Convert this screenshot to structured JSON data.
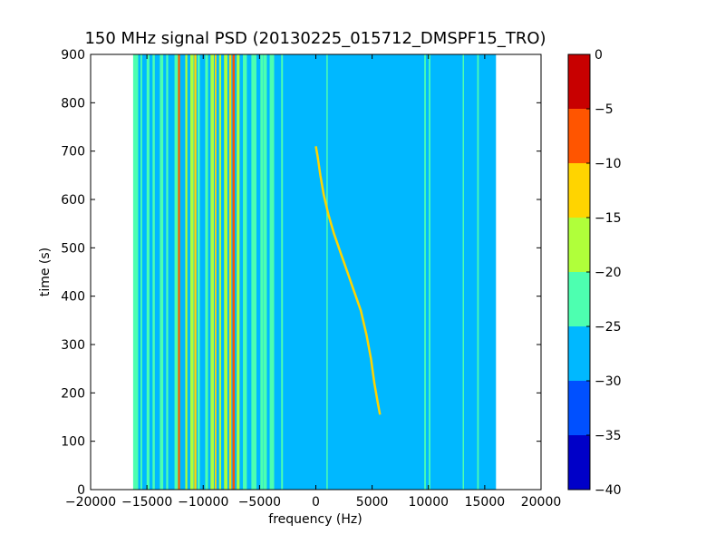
{
  "chart_data": {
    "type": "heatmap",
    "title": "150 MHz signal PSD (20130225_015712_DMSPF15_TRO)",
    "xlabel": "frequency (Hz)",
    "ylabel": "time (s)",
    "xlim": [
      -20000,
      20000
    ],
    "ylim": [
      0,
      900
    ],
    "xticks": [
      -20000,
      -15000,
      -10000,
      -5000,
      0,
      5000,
      10000,
      15000,
      20000
    ],
    "xtick_labels": [
      "−20000",
      "−15000",
      "−10000",
      "−5000",
      "0",
      "5000",
      "10000",
      "15000",
      "20000"
    ],
    "yticks": [
      0,
      100,
      200,
      300,
      400,
      500,
      600,
      700,
      800,
      900
    ],
    "ytick_labels": [
      "0",
      "100",
      "200",
      "300",
      "400",
      "500",
      "600",
      "700",
      "800",
      "900"
    ],
    "data_extent": {
      "freq_min": -16000,
      "freq_max": 16000,
      "time_min": 0,
      "time_max": 900
    },
    "background_level": -27.5,
    "colorbar": {
      "levels": [
        -40,
        -35,
        -30,
        -25,
        -20,
        -15,
        -10,
        -5,
        0
      ],
      "tick_labels": [
        "−40",
        "−35",
        "−30",
        "−25",
        "−20",
        "−15",
        "−10",
        "−5",
        "0"
      ],
      "colors": [
        "#0000c8",
        "#0050ff",
        "#00b8ff",
        "#4dffb0",
        "#b0ff3a",
        "#ffd400",
        "#ff5500",
        "#c80000"
      ]
    },
    "static_bands": [
      {
        "freq": -16000,
        "width": 450,
        "level": -22
      },
      {
        "freq": -15500,
        "width": 150,
        "level": -22
      },
      {
        "freq": -14900,
        "width": 250,
        "level": -22
      },
      {
        "freq": -14400,
        "width": 200,
        "level": -22
      },
      {
        "freq": -13700,
        "width": 300,
        "level": -22
      },
      {
        "freq": -13200,
        "width": 180,
        "level": -22
      },
      {
        "freq": -12300,
        "width": 500,
        "level": -22
      },
      {
        "freq": -12150,
        "width": 180,
        "level": -7
      },
      {
        "freq": -11500,
        "width": 180,
        "level": -17
      },
      {
        "freq": -11000,
        "width": 300,
        "level": -17
      },
      {
        "freq": -10700,
        "width": 200,
        "level": -12
      },
      {
        "freq": -10400,
        "width": 200,
        "level": -22
      },
      {
        "freq": -9700,
        "width": 250,
        "level": -22
      },
      {
        "freq": -9200,
        "width": 300,
        "level": -17
      },
      {
        "freq": -8900,
        "width": 150,
        "level": -12
      },
      {
        "freq": -8500,
        "width": 180,
        "level": -17
      },
      {
        "freq": -8000,
        "width": 300,
        "level": -17
      },
      {
        "freq": -7600,
        "width": 200,
        "level": -12
      },
      {
        "freq": -7300,
        "width": 200,
        "level": -7
      },
      {
        "freq": -6900,
        "width": 250,
        "level": -17
      },
      {
        "freq": -6300,
        "width": 350,
        "level": -22
      },
      {
        "freq": -5500,
        "width": 450,
        "level": -22
      },
      {
        "freq": -4800,
        "width": 250,
        "level": -22
      },
      {
        "freq": -4500,
        "width": 300,
        "level": -22
      },
      {
        "freq": -3900,
        "width": 400,
        "level": -22
      },
      {
        "freq": -3000,
        "width": 160,
        "level": -22
      },
      {
        "freq": 1000,
        "width": 120,
        "level": -22
      },
      {
        "freq": 9700,
        "width": 140,
        "level": -22
      },
      {
        "freq": 10100,
        "width": 140,
        "level": -22
      },
      {
        "freq": 13100,
        "width": 120,
        "level": -22
      },
      {
        "freq": 14400,
        "width": 140,
        "level": -22
      }
    ],
    "drift_trace": {
      "level": -12,
      "points": [
        {
          "freq": 0,
          "time": 710
        },
        {
          "freq": 150,
          "time": 690
        },
        {
          "freq": 400,
          "time": 650
        },
        {
          "freq": 700,
          "time": 610
        },
        {
          "freq": 1100,
          "time": 570
        },
        {
          "freq": 1600,
          "time": 530
        },
        {
          "freq": 2200,
          "time": 490
        },
        {
          "freq": 2800,
          "time": 450
        },
        {
          "freq": 3400,
          "time": 410
        },
        {
          "freq": 4000,
          "time": 370
        },
        {
          "freq": 4500,
          "time": 320
        },
        {
          "freq": 4900,
          "time": 270
        },
        {
          "freq": 5200,
          "time": 220
        },
        {
          "freq": 5500,
          "time": 180
        },
        {
          "freq": 5700,
          "time": 155
        }
      ]
    }
  }
}
